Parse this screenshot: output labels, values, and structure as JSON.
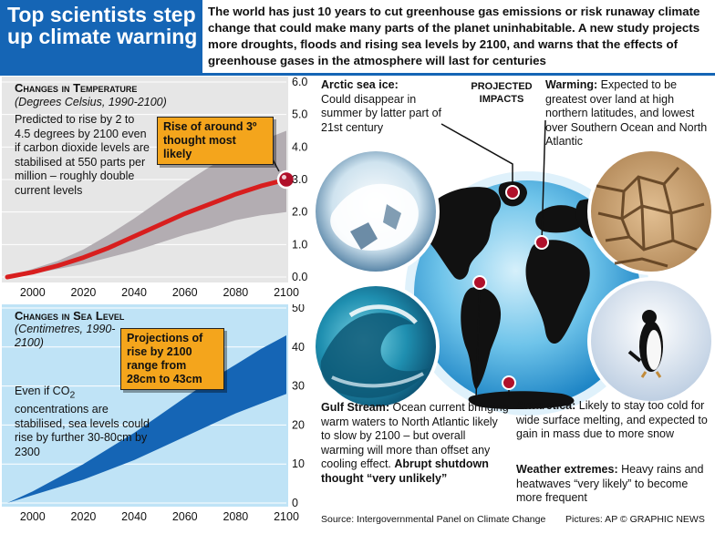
{
  "header": {
    "title": "Top scientists step up climate warning",
    "intro": "The world has just 10 years to cut greenhouse gas emissions or risk runaway climate change that could make many parts of the planet uninhabitable. A new study projects more droughts, floods and rising sea levels by 2100, and warns that the effects of greenhouse gases in the atmosphere will last for centuries"
  },
  "temperature": {
    "title": "Changes in Temperature",
    "subtitle": "(Degrees Celsius, 1990-2100)",
    "description": "Predicted to rise by 2 to 4.5 degrees by 2100 even if carbon dioxide levels are stabilised at 550 parts per million – roughly double current levels",
    "callout": "Rise of around 3º thought most likely"
  },
  "sea_level": {
    "title": "Changes in Sea Level",
    "subtitle": "(Centimetres, 1990-2100)",
    "description_pre": "Even if CO",
    "description_sub": "2",
    "description_post": " concentrations are stabilised, sea levels could rise by further 30-80cm by 2300",
    "callout": "Projections of rise by 2100 range from 28cm to 43cm"
  },
  "chart_data": [
    {
      "type": "area",
      "title": "Changes in Temperature",
      "subtitle": "(Degrees Celsius, 1990-2100)",
      "x_ticks": [
        "2000",
        "2020",
        "2040",
        "2060",
        "2080",
        "2100"
      ],
      "y_ticks": [
        "0.0",
        "1.0",
        "2.0",
        "3.0",
        "4.0",
        "5.0",
        "6.0"
      ],
      "xlim": [
        1990,
        2100
      ],
      "ylim": [
        0,
        6
      ],
      "series": [
        {
          "x": [
            1990,
            2000,
            2010,
            2020,
            2030,
            2040,
            2050,
            2060,
            2070,
            2080,
            2090,
            2100
          ],
          "values": [
            0.0,
            0.15,
            0.35,
            0.6,
            0.9,
            1.25,
            1.6,
            1.95,
            2.25,
            2.55,
            2.8,
            3.0
          ]
        }
      ],
      "range_band": {
        "x": [
          1990,
          2000,
          2010,
          2020,
          2030,
          2040,
          2050,
          2060,
          2070,
          2080,
          2090,
          2100
        ],
        "low": [
          0.0,
          0.1,
          0.25,
          0.4,
          0.6,
          0.8,
          1.05,
          1.3,
          1.5,
          1.75,
          1.9,
          2.0
        ],
        "high": [
          0.0,
          0.25,
          0.5,
          0.85,
          1.3,
          1.8,
          2.35,
          2.9,
          3.4,
          3.85,
          4.2,
          4.5
        ]
      },
      "highlight_point": {
        "x": 2100,
        "y": 3.0
      },
      "colors": {
        "line": "#d81e1e",
        "band": "#b3adb2",
        "background": "#e6e6e6"
      }
    },
    {
      "type": "area",
      "title": "Changes in Sea Level",
      "subtitle": "(Centimetres, 1990-2100)",
      "x_ticks": [
        "2000",
        "2020",
        "2040",
        "2060",
        "2080",
        "2100"
      ],
      "y_ticks": [
        "0",
        "10",
        "20",
        "30",
        "40",
        "50"
      ],
      "xlim": [
        1990,
        2100
      ],
      "ylim": [
        0,
        50
      ],
      "range_band": {
        "x": [
          1990,
          2000,
          2010,
          2020,
          2030,
          2040,
          2050,
          2060,
          2070,
          2080,
          2090,
          2100
        ],
        "low": [
          0,
          2,
          4,
          6,
          8.5,
          11,
          14,
          17,
          20,
          23,
          25.5,
          28
        ],
        "high": [
          0,
          3,
          6.5,
          10,
          14,
          18,
          22.5,
          27,
          31.5,
          35.5,
          39.5,
          43
        ]
      },
      "colors": {
        "band": "#1565b5",
        "background": "#bfe3f6"
      }
    }
  ],
  "impacts": {
    "label": "PROJECTED IMPACTS",
    "arctic": {
      "head": "Arctic sea ice:",
      "body": "Could disappear in summer by latter part of 21st century"
    },
    "warming": {
      "head": "Warming:",
      "body": "Expected to be greatest over land at high northern latitudes, and lowest over Southern Ocean and North Atlantic"
    },
    "gulf": {
      "head": "Gulf Stream:",
      "body": "Ocean current bringing warm waters to North Atlantic likely to slow by 2100 – but overall warming will more than offset any cooling effect.",
      "tail": "Abrupt shutdown thought “very unlikely”"
    },
    "antarctica": {
      "head": "Antarctica:",
      "body": "Likely to stay too cold for wide surface melting, and expected to gain in mass due to more snow"
    },
    "weather": {
      "head": "Weather extremes:",
      "body": "Heavy rains and heatwaves “very likely” to become more frequent"
    }
  },
  "footer": {
    "source": "Source: Intergovernmental Panel on Climate Change",
    "credit": "Pictures: AP  © GRAPHIC NEWS"
  },
  "colors": {
    "brand_blue": "#1565b5",
    "callout_orange": "#f4a51c",
    "marker_red": "#b0102a"
  }
}
